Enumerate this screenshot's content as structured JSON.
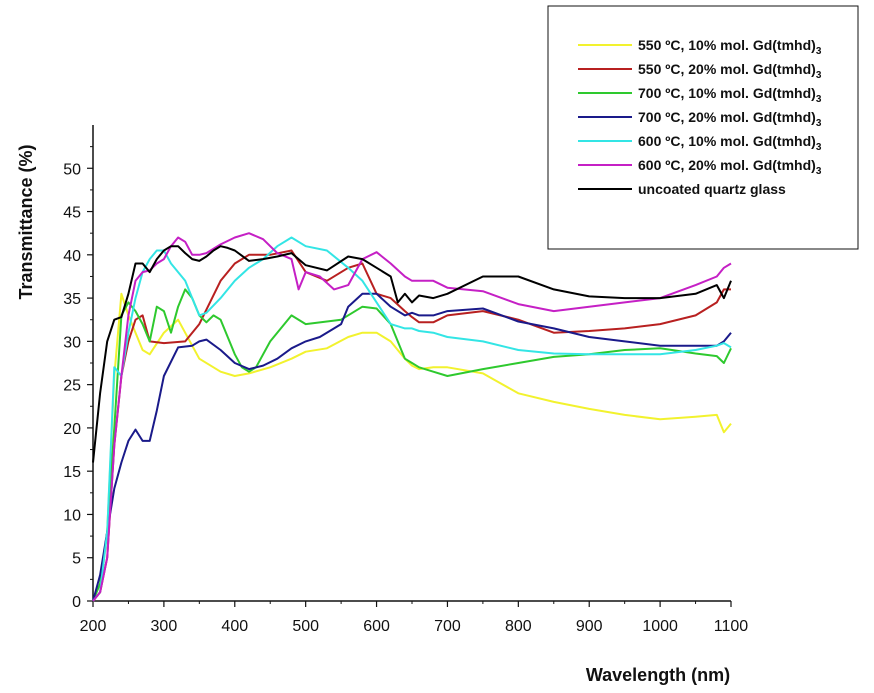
{
  "chart_data": {
    "type": "line",
    "title": "",
    "xlabel": "Wavelength (nm)",
    "ylabel": "Transmittance (%)",
    "xlim": [
      200,
      1100
    ],
    "ylim": [
      0,
      55
    ],
    "x_ticks": [
      200,
      300,
      400,
      500,
      600,
      700,
      800,
      900,
      1000,
      1100
    ],
    "y_ticks": [
      0,
      5,
      10,
      15,
      20,
      25,
      30,
      35,
      40,
      45,
      50
    ],
    "x_tick_labels": [
      "200",
      "300",
      "400",
      "500",
      "600",
      "700",
      "800",
      "900",
      "1000",
      "1100"
    ],
    "y_tick_labels": [
      "0",
      "5",
      "10",
      "15",
      "20",
      "25",
      "30",
      "35",
      "40",
      "45",
      "50"
    ],
    "legend_position": "top-right",
    "series": [
      {
        "name": "550 ºC, 10% mol. Gd(tmhd)",
        "subscript": "3",
        "color": "#f2f22e",
        "x": [
          200,
          210,
          220,
          230,
          240,
          250,
          260,
          270,
          280,
          300,
          320,
          350,
          380,
          400,
          420,
          450,
          480,
          500,
          530,
          560,
          580,
          600,
          620,
          640,
          650,
          660,
          680,
          700,
          750,
          800,
          850,
          900,
          950,
          1000,
          1050,
          1080,
          1090,
          1100
        ],
        "y": [
          0,
          1,
          8,
          26,
          35.5,
          33,
          31,
          29,
          28.5,
          31,
          32.5,
          28,
          26.5,
          26,
          26.3,
          27,
          28,
          28.8,
          29.2,
          30.5,
          31,
          31,
          30,
          28,
          27.2,
          26.8,
          27,
          27,
          26.3,
          24,
          23,
          22.2,
          21.5,
          21,
          21.3,
          21.5,
          19.5,
          20.5
        ]
      },
      {
        "name": "550 ºC, 20% mol. Gd(tmhd)",
        "subscript": "3",
        "color": "#b82020",
        "x": [
          200,
          210,
          220,
          230,
          240,
          250,
          260,
          270,
          280,
          300,
          330,
          350,
          380,
          400,
          420,
          450,
          480,
          500,
          530,
          560,
          580,
          600,
          620,
          640,
          650,
          660,
          680,
          700,
          750,
          800,
          850,
          900,
          950,
          1000,
          1050,
          1080,
          1090,
          1100
        ],
        "y": [
          0,
          1,
          5,
          18,
          26,
          30,
          32.5,
          33,
          30,
          29.8,
          30,
          32,
          37,
          39,
          40,
          40,
          40.5,
          38,
          37,
          38.5,
          39,
          35.5,
          35,
          33.5,
          32.8,
          32.2,
          32.2,
          33,
          33.5,
          32.5,
          31,
          31.2,
          31.5,
          32,
          33,
          34.5,
          36,
          36
        ]
      },
      {
        "name": "700 ºC, 10% mol. Gd(tmhd)",
        "subscript": "3",
        "color": "#2ec92e",
        "x": [
          200,
          210,
          220,
          230,
          240,
          250,
          260,
          270,
          280,
          290,
          300,
          310,
          320,
          330,
          340,
          350,
          360,
          370,
          380,
          390,
          400,
          410,
          420,
          430,
          450,
          480,
          500,
          550,
          580,
          600,
          620,
          640,
          650,
          660,
          680,
          700,
          750,
          800,
          850,
          900,
          950,
          1000,
          1050,
          1080,
          1090,
          1100
        ],
        "y": [
          0,
          2,
          8,
          20,
          33,
          34.5,
          33.5,
          32,
          30,
          34,
          33.5,
          31,
          34,
          36,
          35,
          33,
          32.2,
          33,
          32.5,
          30.5,
          28.5,
          27,
          26.5,
          27,
          30,
          33,
          32,
          32.5,
          34,
          33.8,
          32,
          28,
          27.5,
          27,
          26.5,
          26,
          26.8,
          27.5,
          28.2,
          28.5,
          29,
          29.2,
          28.6,
          28.3,
          27.5,
          29.2
        ]
      },
      {
        "name": "700 ºC, 20% mol. Gd(tmhd)",
        "subscript": "3",
        "color": "#1a1a8a",
        "x": [
          200,
          210,
          220,
          230,
          240,
          250,
          260,
          270,
          280,
          290,
          300,
          320,
          340,
          350,
          360,
          380,
          400,
          420,
          440,
          460,
          480,
          500,
          520,
          550,
          560,
          580,
          600,
          620,
          640,
          650,
          660,
          680,
          700,
          750,
          800,
          850,
          900,
          950,
          1000,
          1050,
          1080,
          1090,
          1100
        ],
        "y": [
          0,
          3,
          8,
          13,
          16,
          18.5,
          19.8,
          18.5,
          18.5,
          22,
          26,
          29.3,
          29.5,
          30,
          30.2,
          29,
          27.5,
          26.8,
          27.2,
          28,
          29.2,
          30,
          30.5,
          32,
          34,
          35.5,
          35.5,
          34,
          33,
          33.3,
          33,
          33,
          33.5,
          33.8,
          32.3,
          31.5,
          30.5,
          30,
          29.5,
          29.5,
          29.5,
          30,
          31
        ]
      },
      {
        "name": "600 ºC, 10% mol. Gd(tmhd)",
        "subscript": "3",
        "color": "#33e5e5",
        "x": [
          200,
          210,
          220,
          230,
          240,
          250,
          260,
          270,
          280,
          290,
          300,
          310,
          320,
          330,
          340,
          350,
          360,
          380,
          400,
          420,
          440,
          460,
          480,
          500,
          530,
          560,
          580,
          600,
          620,
          640,
          650,
          660,
          680,
          700,
          750,
          800,
          850,
          900,
          950,
          1000,
          1050,
          1080,
          1090,
          1100
        ],
        "y": [
          0,
          1,
          8,
          27,
          26,
          31,
          35,
          38,
          39.5,
          40.5,
          40.5,
          39,
          38,
          37,
          35,
          33,
          33.3,
          35,
          37,
          38.5,
          39.5,
          41,
          42,
          41,
          40.5,
          38.5,
          37,
          34.5,
          32,
          31.5,
          31.5,
          31.2,
          31,
          30.5,
          30,
          29,
          28.6,
          28.5,
          28.5,
          28.5,
          29,
          29.5,
          29.8,
          29.3
        ]
      },
      {
        "name": "600 ºC, 20% mol. Gd(tmhd)",
        "subscript": "3",
        "color": "#c520c5",
        "x": [
          200,
          210,
          220,
          230,
          240,
          250,
          260,
          270,
          280,
          290,
          300,
          310,
          320,
          330,
          340,
          350,
          360,
          380,
          400,
          420,
          440,
          460,
          480,
          490,
          500,
          520,
          540,
          560,
          580,
          600,
          620,
          640,
          650,
          660,
          680,
          700,
          750,
          800,
          850,
          900,
          950,
          1000,
          1050,
          1080,
          1090,
          1100
        ],
        "y": [
          0,
          1,
          5,
          18,
          26,
          33,
          37,
          38,
          38.2,
          39,
          39.5,
          41,
          42,
          41.5,
          40,
          40,
          40.2,
          41.2,
          42,
          42.5,
          41.8,
          40.2,
          39.5,
          36,
          38,
          37.5,
          36,
          36.5,
          39.5,
          40.3,
          39,
          37.5,
          37,
          37,
          37,
          36.2,
          35.8,
          34.3,
          33.5,
          34,
          34.5,
          35,
          36.5,
          37.5,
          38.5,
          39
        ]
      },
      {
        "name": "uncoated quartz glass",
        "subscript": "",
        "color": "#000000",
        "x": [
          200,
          210,
          220,
          230,
          240,
          250,
          260,
          270,
          280,
          290,
          300,
          310,
          320,
          330,
          340,
          350,
          360,
          370,
          380,
          390,
          400,
          420,
          440,
          460,
          480,
          500,
          530,
          560,
          580,
          600,
          620,
          630,
          640,
          650,
          660,
          680,
          700,
          750,
          800,
          850,
          900,
          950,
          1000,
          1050,
          1080,
          1090,
          1100
        ],
        "y": [
          16,
          24,
          30,
          32.5,
          32.8,
          35.5,
          39,
          39,
          38,
          39.5,
          40.5,
          41,
          41,
          40.2,
          39.5,
          39.3,
          39.8,
          40.5,
          41,
          40.8,
          40.5,
          39.3,
          39.5,
          39.8,
          40.2,
          38.8,
          38.2,
          39.8,
          39.5,
          38.5,
          37.5,
          34.5,
          35.5,
          34.5,
          35.3,
          35,
          35.5,
          37.5,
          37.5,
          36,
          35.2,
          35,
          35,
          35.5,
          36.5,
          35,
          37
        ]
      }
    ]
  }
}
